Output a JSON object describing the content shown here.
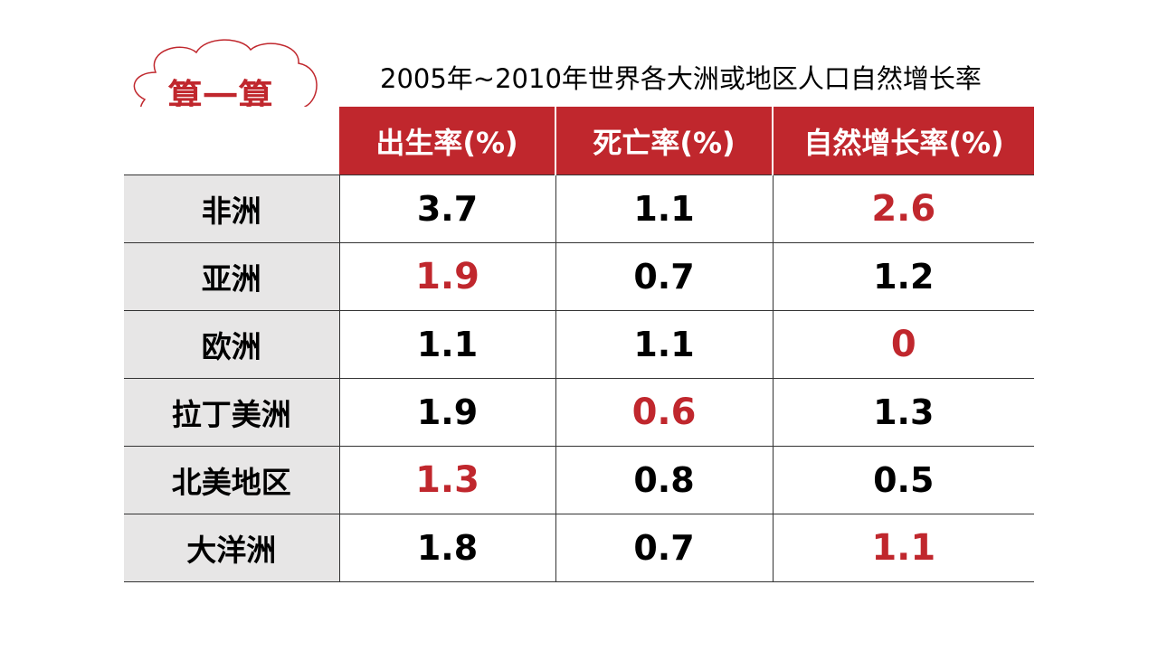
{
  "badge": {
    "label": "算一算"
  },
  "title": "2005年~2010年世界各大洲或地区人口自然增长率",
  "colors": {
    "accent": "#c0272d",
    "row_header_bg": "#e7e6e6"
  },
  "table": {
    "columns": [
      "出生率(%)",
      "死亡率(%)",
      "自然增长率(%)"
    ],
    "rows": [
      {
        "region": "非洲",
        "values": [
          "3.7",
          "1.1",
          "2.6"
        ],
        "highlight": [
          false,
          false,
          true
        ]
      },
      {
        "region": "亚洲",
        "values": [
          "1.9",
          "0.7",
          "1.2"
        ],
        "highlight": [
          true,
          false,
          false
        ]
      },
      {
        "region": "欧洲",
        "values": [
          "1.1",
          "1.1",
          "0"
        ],
        "highlight": [
          false,
          false,
          true
        ]
      },
      {
        "region": "拉丁美洲",
        "values": [
          "1.9",
          "0.6",
          "1.3"
        ],
        "highlight": [
          false,
          true,
          false
        ]
      },
      {
        "region": "北美地区",
        "values": [
          "1.3",
          "0.8",
          "0.5"
        ],
        "highlight": [
          true,
          false,
          false
        ]
      },
      {
        "region": "大洋洲",
        "values": [
          "1.8",
          "0.7",
          "1.1"
        ],
        "highlight": [
          false,
          false,
          true
        ]
      }
    ]
  }
}
